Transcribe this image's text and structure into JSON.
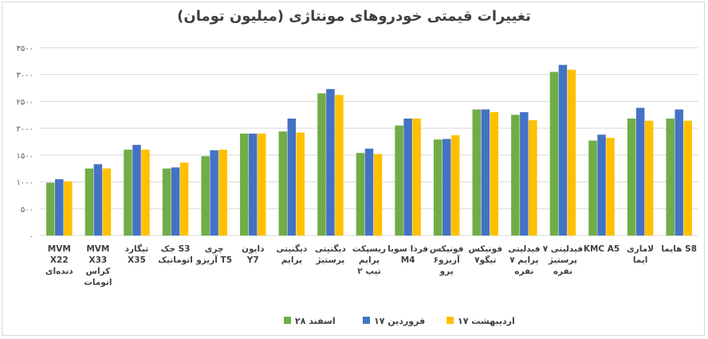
{
  "chart_data": {
    "type": "bar",
    "title": "تغییرات قیمتی خودروهای مونتاژی (میلیون تومان)",
    "ylim": [
      0,
      3500
    ],
    "yticks": [
      "۰",
      "۵۰۰",
      "۱۰۰۰",
      "۱۵۰۰",
      "۲۰۰۰",
      "۲۵۰۰",
      "۳۰۰۰",
      "۳۵۰۰"
    ],
    "grid": true,
    "legend_position": "bottom",
    "categories": [
      [
        "MVM",
        "X22",
        "دنده‌ای"
      ],
      [
        "MVM",
        "X33",
        "کراس",
        "اتومات"
      ],
      [
        "تیگارد",
        "X35"
      ],
      [
        "جک S3",
        "اتوماتیک"
      ],
      [
        "چری",
        "آریزو T5"
      ],
      [
        "دایون",
        "Y7"
      ],
      [
        "دیگنیتی",
        "پرایم"
      ],
      [
        "دیگنیتی",
        "پرستیژ"
      ],
      [
        "ریسپکت",
        "پرایم",
        "تیپ ۲"
      ],
      [
        "فردا سوبا",
        "M4"
      ],
      [
        "فونیکس",
        "آریزو۶",
        "پرو"
      ],
      [
        "فونیکس",
        "تیگو۷"
      ],
      [
        "فیدلیتی",
        "پرایم ۷",
        "نفره"
      ],
      [
        "فیدلیتی ۷",
        "پرستیژ",
        "نفره"
      ],
      [
        "KMC A5"
      ],
      [
        "لاماری",
        "ایما"
      ],
      [
        "هایما S8"
      ]
    ],
    "series": [
      {
        "name": "۲۸ اسفند",
        "color": "#70ad47",
        "values": [
          985,
          1250,
          1600,
          1250,
          1480,
          1900,
          1940,
          2650,
          1540,
          2050,
          1790,
          2350,
          2250,
          3050,
          1770,
          2180,
          2180
        ]
      },
      {
        "name": "۱۷ فروردین",
        "color": "#4472c4",
        "values": [
          1050,
          1330,
          1690,
          1270,
          1590,
          1900,
          2180,
          2730,
          1620,
          2180,
          1800,
          2350,
          2300,
          3180,
          1880,
          2380,
          2350
        ]
      },
      {
        "name": "۱۷ اردیبهشت",
        "color": "#ffc000",
        "values": [
          1010,
          1250,
          1600,
          1360,
          1600,
          1900,
          1920,
          2620,
          1520,
          2180,
          1870,
          2300,
          2150,
          3090,
          1820,
          2140,
          2140
        ]
      }
    ]
  }
}
